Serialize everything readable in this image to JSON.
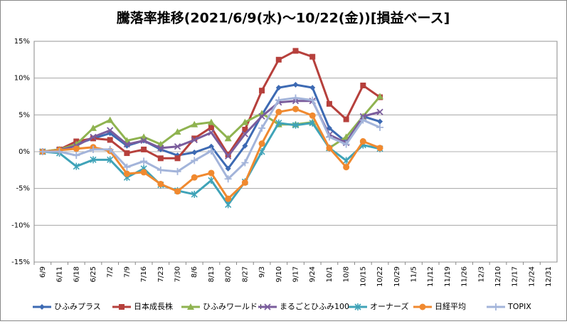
{
  "chart_data": {
    "type": "line",
    "title": "騰落率推移(2021/6/9(水)～10/22(金))[損益ベース]",
    "categories": [
      "6/9",
      "6/11",
      "6/18",
      "6/25",
      "7/2",
      "7/9",
      "7/16",
      "7/23",
      "7/30",
      "8/6",
      "8/13",
      "8/20",
      "8/27",
      "9/3",
      "9/10",
      "9/17",
      "9/24",
      "10/1",
      "10/8",
      "10/15",
      "10/22",
      "10/29",
      "11/5",
      "11/12",
      "11/19",
      "11/26",
      "12/3",
      "12/10",
      "12/17",
      "12/24",
      "12/31"
    ],
    "series": [
      {
        "name": "ひふみプラス",
        "color": "#3d6ab3",
        "marker": "diamond",
        "values": [
          0,
          0.2,
          1.0,
          1.8,
          2.5,
          0.8,
          1.5,
          0.3,
          -0.5,
          -0.1,
          0.7,
          -2.3,
          0.8,
          5.0,
          8.7,
          9.1,
          8.7,
          3.2,
          1.3,
          4.8,
          4.1,
          null,
          null,
          null,
          null,
          null,
          null,
          null,
          null,
          null,
          null
        ]
      },
      {
        "name": "日本成長株",
        "color": "#b6403c",
        "marker": "square",
        "values": [
          0,
          0.3,
          1.4,
          1.8,
          1.6,
          -0.2,
          0.3,
          -0.9,
          -0.9,
          1.8,
          3.3,
          -0.4,
          3.0,
          8.3,
          12.5,
          13.7,
          12.9,
          6.5,
          4.4,
          9.0,
          7.4,
          null,
          null,
          null,
          null,
          null,
          null,
          null,
          null,
          null,
          null
        ]
      },
      {
        "name": "ひふみワールド+",
        "color": "#8fb350",
        "marker": "triangle",
        "values": [
          0,
          0.3,
          1.0,
          3.2,
          4.3,
          1.5,
          2.0,
          1.0,
          2.7,
          3.7,
          4.0,
          1.8,
          4.0,
          5.2,
          3.7,
          3.7,
          4.0,
          0.5,
          2.0,
          4.8,
          7.5,
          null,
          null,
          null,
          null,
          null,
          null,
          null,
          null,
          null,
          null
        ]
      },
      {
        "name": "まるごとひふみ100",
        "color": "#7a5c9c",
        "marker": "x",
        "values": [
          0,
          0.2,
          0.8,
          2.0,
          2.9,
          1.0,
          1.5,
          0.5,
          0.7,
          1.6,
          2.6,
          -0.6,
          2.4,
          4.8,
          6.7,
          6.9,
          6.9,
          2.3,
          1.2,
          4.8,
          5.4,
          null,
          null,
          null,
          null,
          null,
          null,
          null,
          null,
          null,
          null
        ]
      },
      {
        "name": "オーナーズ",
        "color": "#3fa3b8",
        "marker": "star",
        "values": [
          0,
          -0.2,
          -2.0,
          -1.1,
          -1.1,
          -3.5,
          -2.3,
          -4.5,
          -5.3,
          -5.8,
          -3.9,
          -7.2,
          -4.1,
          0,
          3.9,
          3.6,
          3.9,
          0.5,
          -1.2,
          0.9,
          0.4,
          null,
          null,
          null,
          null,
          null,
          null,
          null,
          null,
          null,
          null
        ]
      },
      {
        "name": "日経平均",
        "color": "#f0892f",
        "marker": "circle",
        "values": [
          0,
          0.2,
          0.4,
          0.6,
          0.1,
          -3.0,
          -2.8,
          -4.4,
          -5.4,
          -3.5,
          -2.9,
          -6.4,
          -4.2,
          1.1,
          5.4,
          5.8,
          4.9,
          0.5,
          -2.1,
          1.4,
          0.5,
          null,
          null,
          null,
          null,
          null,
          null,
          null,
          null,
          null,
          null
        ]
      },
      {
        "name": "TOPIX",
        "color": "#a3b4da",
        "marker": "plus",
        "values": [
          0,
          0,
          -0.5,
          0.3,
          0.3,
          -2.1,
          -1.3,
          -2.5,
          -2.7,
          -1.2,
          0.1,
          -3.7,
          -1.5,
          3.2,
          7.0,
          7.3,
          7.0,
          2.0,
          1.0,
          4.3,
          3.3,
          null,
          null,
          null,
          null,
          null,
          null,
          null,
          null,
          null,
          null
        ]
      }
    ],
    "ylim": [
      -15,
      15
    ],
    "yticks": [
      {
        "value": -15,
        "label": "-15%"
      },
      {
        "value": -10,
        "label": "-10%"
      },
      {
        "value": -5,
        "label": "-5%"
      },
      {
        "value": 0,
        "label": "0%"
      },
      {
        "value": 5,
        "label": "5%"
      },
      {
        "value": 10,
        "label": "10%"
      },
      {
        "value": 15,
        "label": "15%"
      }
    ],
    "grid": true,
    "legend": "bottom"
  }
}
